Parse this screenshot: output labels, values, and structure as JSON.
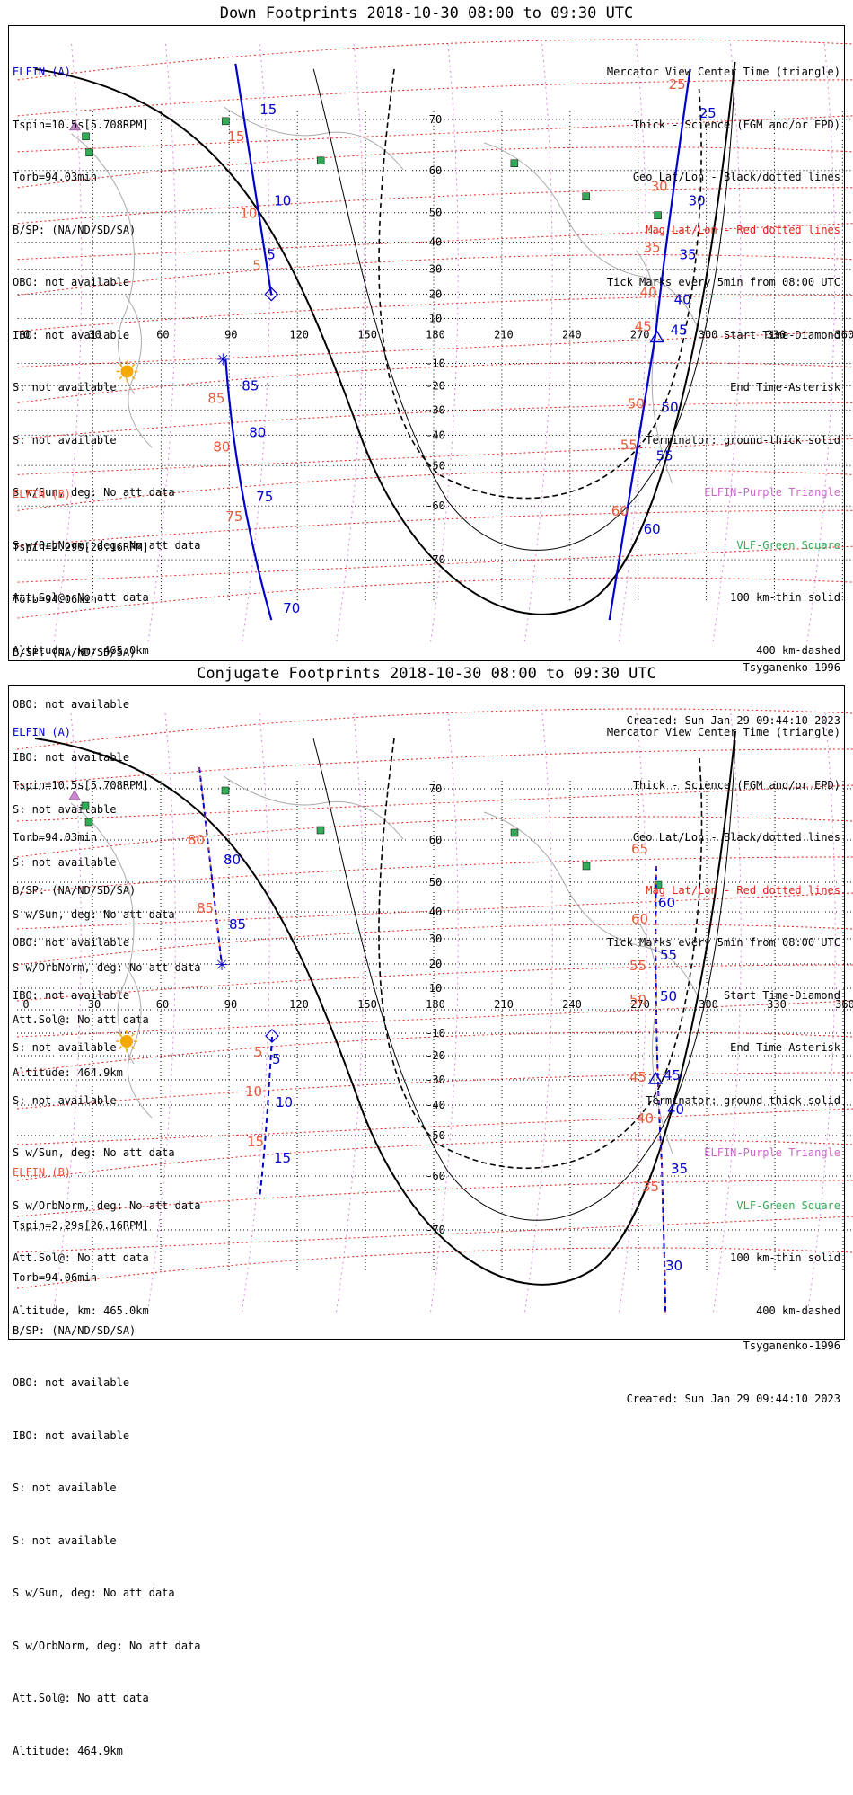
{
  "panels": [
    {
      "id": "down",
      "title": "Down Footprints 2018-10-30 08:00 to 09:30 UTC",
      "elfin_a": {
        "header": "ELFIN (A)",
        "lines": [
          "Tspin=10.5s[5.708RPM]",
          "Torb=94.03min",
          "B/SP: (NA/ND/SD/SA)",
          "OBO: not available",
          "IBO: not available",
          "S: not available",
          "S: not available",
          "S w/Sun, deg: No att data",
          "S w/OrbNorm, deg: No att data",
          "Att.Sol@: No att data",
          "Altitude, km: 465.0km"
        ]
      },
      "elfin_b": {
        "header": "ELFIN (B)",
        "lines": [
          "Tspin=2.29s[26.16RPM]",
          "Torb=94.06min",
          "B/SP: (NA/ND/SD/SA)",
          "OBO: not available",
          "IBO: not available",
          "S: not available",
          "S: not available",
          "S w/Sun, deg: No att data",
          "S w/OrbNorm, deg: No att data",
          "Att.Sol@: No att data",
          "Altitude: 464.9km"
        ]
      },
      "legend": [
        "Mercator View Center Time (triangle)",
        "Thick - Science (FGM and/or EPD)",
        "Geo Lat/Lon - Black/dotted lines",
        "Mag Lat/Lon - Red dotted lines",
        "Tick Marks every 5min from 08:00 UTC",
        "Start Time-Diamond",
        "End Time-Asterisk",
        "Terminator: ground-thick solid",
        "ELFIN-Purple Triangle",
        "VLF-Green Square",
        "100 km-thin solid",
        "400 km-dashed"
      ],
      "model": "Tsyganenko-1996",
      "created": "Created: Sun Jan 29 09:44:10 2023",
      "orbit_a_ticks": [
        "5",
        "10",
        "15",
        "25",
        "30",
        "35",
        "40",
        "45",
        "50",
        "55",
        "60",
        "70",
        "75",
        "80",
        "85"
      ],
      "orbit_b_ticks": [
        "5",
        "10",
        "15",
        "25",
        "30",
        "35",
        "40",
        "45",
        "50",
        "55",
        "60",
        "75",
        "80",
        "85"
      ]
    },
    {
      "id": "conjugate",
      "title": "Conjugate Footprints 2018-10-30 08:00 to 09:30 UTC",
      "elfin_a": {
        "header": "ELFIN (A)",
        "lines": [
          "Tspin=10.5s[5.708RPM]",
          "Torb=94.03min",
          "B/SP: (NA/ND/SD/SA)",
          "OBO: not available",
          "IBO: not available",
          "S: not available",
          "S: not available",
          "S w/Sun, deg: No att data",
          "S w/OrbNorm, deg: No att data",
          "Att.Sol@: No att data",
          "Altitude, km: 465.0km"
        ]
      },
      "elfin_b": {
        "header": "ELFIN (B)",
        "lines": [
          "Tspin=2.29s[26.16RPM]",
          "Torb=94.06min",
          "B/SP: (NA/ND/SD/SA)",
          "OBO: not available",
          "IBO: not available",
          "S: not available",
          "S: not available",
          "S w/Sun, deg: No att data",
          "S w/OrbNorm, deg: No att data",
          "Att.Sol@: No att data",
          "Altitude: 464.9km"
        ]
      },
      "legend": [
        "Mercator View Center Time (triangle)",
        "Thick - Science (FGM and/or EPD)",
        "Geo Lat/Lon - Black/dotted lines",
        "Mag Lat/Lon - Red dotted lines",
        "Tick Marks every 5min from 08:00 UTC",
        "Start Time-Diamond",
        "End Time-Asterisk",
        "Terminator: ground-thick solid",
        "ELFIN-Purple Triangle",
        "VLF-Green Square",
        "100 km-thin solid",
        "400 km-dashed"
      ],
      "model": "Tsyganenko-1996",
      "created": "Created: Sun Jan 29 09:44:10 2023",
      "orbit_a_ticks": [
        "5",
        "10",
        "15",
        "30",
        "35",
        "40",
        "45",
        "50",
        "55",
        "60",
        "80",
        "85"
      ],
      "orbit_b_ticks": [
        "5",
        "10",
        "15",
        "35",
        "40",
        "45",
        "50",
        "55",
        "60",
        "65",
        "80",
        "85"
      ]
    }
  ],
  "axes": {
    "lon_ticks": [
      "0",
      "30",
      "60",
      "90",
      "120",
      "150",
      "180",
      "210",
      "240",
      "270",
      "300",
      "330",
      "360"
    ],
    "lat_ticks": [
      "70",
      "60",
      "50",
      "40",
      "30",
      "20",
      "10",
      "-10",
      "-20",
      "-30",
      "-40",
      "-50",
      "-60",
      "-70"
    ]
  },
  "colors": {
    "elfin_a": "#0000cc",
    "elfin_b": "#e8583a",
    "mag_grid": "#e8201a",
    "geo_grid": "#000000",
    "elfin_marker": "#cc66cc",
    "vlf": "#33aa55",
    "sun": "#f5a800"
  }
}
